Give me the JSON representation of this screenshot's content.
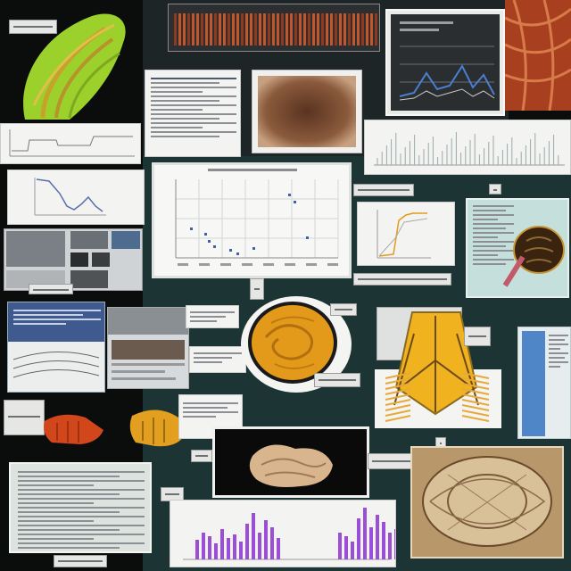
{
  "palette": {
    "background": "#0b0d0d",
    "teal_background": "#1c3433",
    "panel_white": "#f3f4f2",
    "accent_green": "#9bd12a",
    "accent_orange": "#e39a1a",
    "accent_red": "#d2461c",
    "bar_purple": "#9a4fd6",
    "chart_blue": "#3d62a6"
  },
  "icons": [
    "green-organism-render",
    "red-bar-strip",
    "tissue-texture-image",
    "dark-line-chart",
    "orange-tissue-render",
    "yellow-fibrous-structure",
    "orange-3d-renders",
    "beige-specimen-render",
    "anatomical-section-image",
    "purple-bar-chart"
  ]
}
